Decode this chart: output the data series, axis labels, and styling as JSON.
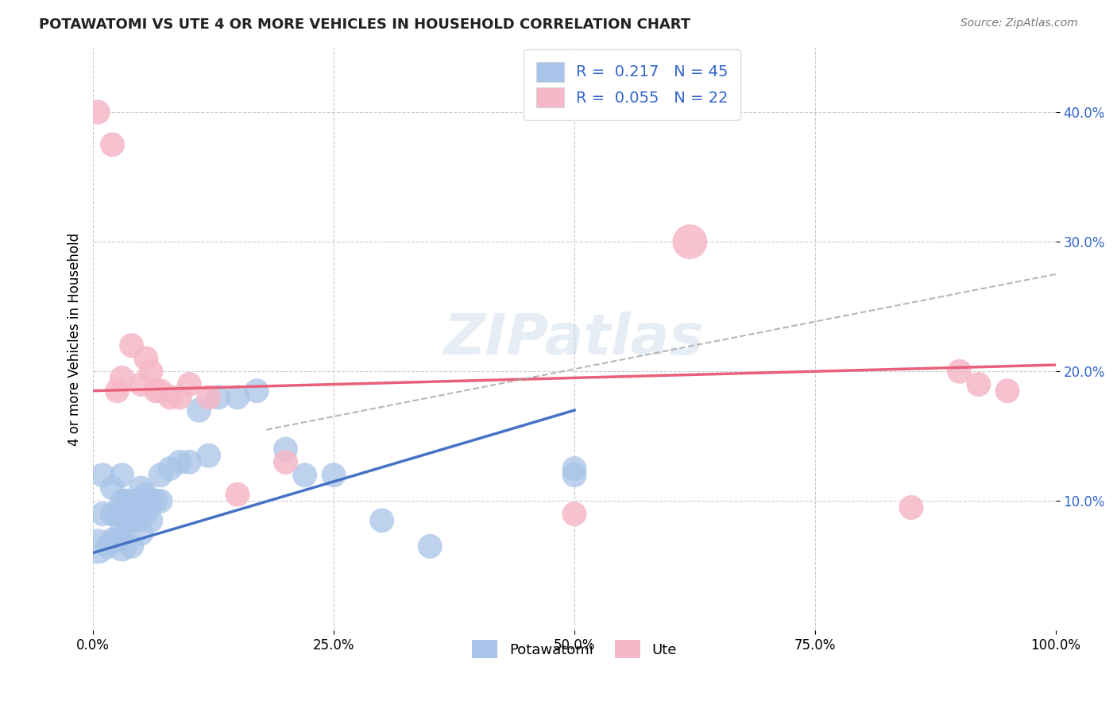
{
  "title": "POTAWATOMI VS UTE 4 OR MORE VEHICLES IN HOUSEHOLD CORRELATION CHART",
  "source": "Source: ZipAtlas.com",
  "ylabel": "4 or more Vehicles in Household",
  "xlim": [
    0.0,
    1.0
  ],
  "ylim": [
    0.0,
    0.45
  ],
  "xticks": [
    0.0,
    0.25,
    0.5,
    0.75,
    1.0
  ],
  "xtick_labels": [
    "0.0%",
    "25.0%",
    "50.0%",
    "75.0%",
    "100.0%"
  ],
  "yticks": [
    0.1,
    0.2,
    0.3,
    0.4
  ],
  "ytick_labels": [
    "10.0%",
    "20.0%",
    "30.0%",
    "40.0%"
  ],
  "color_blue": "#a8c4e8",
  "color_pink": "#f5b8c8",
  "line_blue": "#4472c4",
  "line_pink": "#e8607a",
  "line_dash_color": "#aaaaaa",
  "watermark": "ZIPatlas",
  "legend_label1": "R =  0.217   N = 45",
  "legend_label2": "R =  0.055   N = 22",
  "legend_label_blue": "Potawatomi",
  "legend_label_pink": "Ute",
  "pot_x": [
    0.005,
    0.01,
    0.01,
    0.015,
    0.02,
    0.02,
    0.02,
    0.025,
    0.025,
    0.03,
    0.03,
    0.03,
    0.03,
    0.035,
    0.035,
    0.04,
    0.04,
    0.04,
    0.045,
    0.045,
    0.05,
    0.05,
    0.05,
    0.055,
    0.055,
    0.06,
    0.06,
    0.065,
    0.07,
    0.07,
    0.08,
    0.09,
    0.1,
    0.11,
    0.12,
    0.13,
    0.15,
    0.17,
    0.2,
    0.22,
    0.25,
    0.3,
    0.35,
    0.5,
    0.5
  ],
  "pot_y": [
    0.065,
    0.09,
    0.12,
    0.065,
    0.07,
    0.09,
    0.11,
    0.07,
    0.09,
    0.065,
    0.08,
    0.1,
    0.12,
    0.085,
    0.1,
    0.065,
    0.085,
    0.1,
    0.085,
    0.1,
    0.075,
    0.09,
    0.11,
    0.09,
    0.105,
    0.085,
    0.1,
    0.1,
    0.1,
    0.12,
    0.125,
    0.13,
    0.13,
    0.17,
    0.135,
    0.18,
    0.18,
    0.185,
    0.14,
    0.12,
    0.12,
    0.085,
    0.065,
    0.125,
    0.12
  ],
  "pot_s": [
    200,
    100,
    100,
    100,
    100,
    100,
    100,
    100,
    100,
    150,
    100,
    100,
    100,
    100,
    100,
    100,
    100,
    100,
    100,
    100,
    100,
    100,
    100,
    100,
    100,
    100,
    100,
    100,
    100,
    100,
    100,
    100,
    100,
    100,
    100,
    100,
    100,
    100,
    100,
    100,
    100,
    100,
    100,
    100,
    100
  ],
  "ute_x": [
    0.005,
    0.02,
    0.025,
    0.03,
    0.04,
    0.05,
    0.055,
    0.06,
    0.065,
    0.07,
    0.08,
    0.09,
    0.1,
    0.12,
    0.15,
    0.2,
    0.5,
    0.62,
    0.85,
    0.9,
    0.92,
    0.95
  ],
  "ute_y": [
    0.4,
    0.375,
    0.185,
    0.195,
    0.22,
    0.19,
    0.21,
    0.2,
    0.185,
    0.185,
    0.18,
    0.18,
    0.19,
    0.18,
    0.105,
    0.13,
    0.09,
    0.3,
    0.095,
    0.2,
    0.19,
    0.185
  ],
  "ute_s": [
    100,
    100,
    100,
    100,
    100,
    100,
    100,
    100,
    100,
    100,
    100,
    100,
    100,
    100,
    100,
    100,
    100,
    200,
    100,
    100,
    100,
    100
  ],
  "blue_line_x0": 0.0,
  "blue_line_y0": 0.06,
  "blue_line_x1": 0.5,
  "blue_line_y1": 0.17,
  "pink_line_x0": 0.0,
  "pink_line_y0": 0.185,
  "pink_line_x1": 1.0,
  "pink_line_y1": 0.205,
  "dash_line_x0": 0.18,
  "dash_line_y0": 0.155,
  "dash_line_x1": 1.0,
  "dash_line_y1": 0.275
}
